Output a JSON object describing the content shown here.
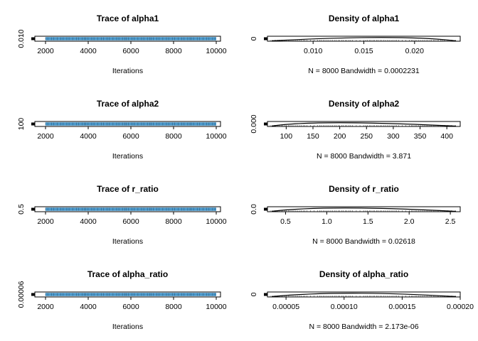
{
  "chart_data": [
    {
      "type": "line",
      "title": "Trace of alpha1",
      "xlabel": "Iterations",
      "xlim": [
        1500,
        10200
      ],
      "x_ticks": [
        "2000",
        "4000",
        "6000",
        "8000",
        "10000"
      ],
      "y_ticks": [
        "0.010"
      ],
      "series_color": "#4a97c9",
      "x_range": [
        2001,
        10000
      ],
      "y_range": [
        0.0064,
        0.0236
      ]
    },
    {
      "type": "line",
      "title": "Density of alpha1",
      "xlabel": "N = 8000   Bandwidth = 0.0002231",
      "xlim": [
        0.0055,
        0.0245
      ],
      "x_ticks": [
        "0.010",
        "0.015",
        "0.020"
      ],
      "y_ticks": [
        "0"
      ],
      "peak_x": 0.0185
    },
    {
      "type": "line",
      "title": "Trace of alpha2",
      "xlabel": "Iterations",
      "xlim": [
        1500,
        10200
      ],
      "x_ticks": [
        "2000",
        "4000",
        "6000",
        "8000",
        "10000"
      ],
      "y_ticks": [
        "100"
      ],
      "series_color": "#4a97c9",
      "x_range": [
        2001,
        10000
      ],
      "y_range": [
        70,
        420
      ]
    },
    {
      "type": "line",
      "title": "Density of alpha2",
      "xlabel": "N = 8000   Bandwidth = 3.871",
      "xlim": [
        65,
        425
      ],
      "x_ticks": [
        "100",
        "150",
        "200",
        "250",
        "300",
        "350",
        "400"
      ],
      "y_ticks": [
        "0.000"
      ],
      "peak_x": 155
    },
    {
      "type": "line",
      "title": "Trace of r_ratio",
      "xlabel": "Iterations",
      "xlim": [
        1500,
        10200
      ],
      "x_ticks": [
        "2000",
        "4000",
        "6000",
        "8000",
        "10000"
      ],
      "y_ticks": [
        "0.5"
      ],
      "series_color": "#4a97c9",
      "x_range": [
        2001,
        10000
      ],
      "y_range": [
        0.3,
        2.6
      ]
    },
    {
      "type": "line",
      "title": "Density of r_ratio",
      "xlabel": "N = 8000   Bandwidth = 0.02618",
      "xlim": [
        0.28,
        2.62
      ],
      "x_ticks": [
        "0.5",
        "1.0",
        "1.5",
        "2.0",
        "2.5"
      ],
      "y_ticks": [
        "0.0"
      ],
      "peak_x": 1.0
    },
    {
      "type": "line",
      "title": "Trace of alpha_ratio",
      "xlabel": "Iterations",
      "xlim": [
        1500,
        10200
      ],
      "x_ticks": [
        "2000",
        "4000",
        "6000",
        "8000",
        "10000"
      ],
      "y_ticks": [
        "0.00006"
      ],
      "series_color": "#4a97c9",
      "x_range": [
        2001,
        10000
      ],
      "y_range": [
        3.5e-05,
        0.0002
      ]
    },
    {
      "type": "line",
      "title": "Density of alpha_ratio",
      "xlabel": "N = 8000   Bandwidth = 2.173e-06",
      "xlim": [
        3.4e-05,
        0.0002
      ],
      "x_ticks": [
        "0.00005",
        "0.00010",
        "0.00015",
        "0.00020"
      ],
      "y_ticks": [
        "0"
      ],
      "peak_x": 9.8e-05
    }
  ]
}
